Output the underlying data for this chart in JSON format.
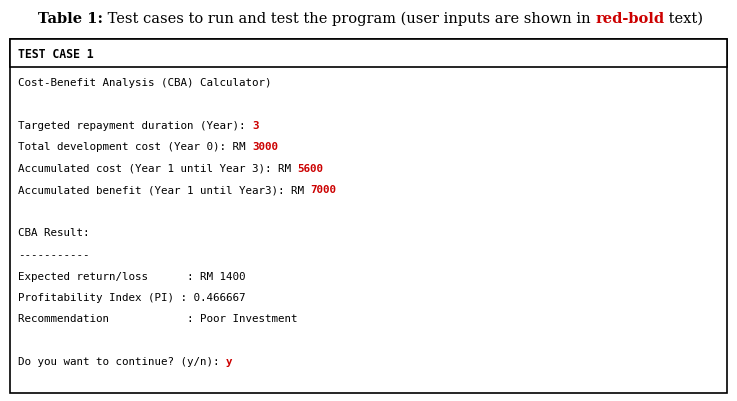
{
  "bg_color": "#ffffff",
  "box_border": "#000000",
  "header_text": "TEST CASE 1",
  "mono_font_size": 7.8,
  "title_font_size": 10.5,
  "title_parts": [
    {
      "text": "Table 1:",
      "color": "#000000",
      "bold": true,
      "family": "serif"
    },
    {
      "text": " Test cases to run and test the program (user inputs are shown in ",
      "color": "#000000",
      "bold": false,
      "family": "serif"
    },
    {
      "text": "red-bold",
      "color": "#cc0000",
      "bold": true,
      "family": "serif"
    },
    {
      "text": " text)",
      "color": "#000000",
      "bold": false,
      "family": "serif"
    }
  ],
  "lines": [
    {
      "parts": [
        {
          "text": "Cost-Benefit Analysis (CBA) Calculator)",
          "color": "#000000",
          "bold": false
        }
      ]
    },
    {
      "parts": []
    },
    {
      "parts": [
        {
          "text": "Targeted repayment duration (Year): ",
          "color": "#000000",
          "bold": false
        },
        {
          "text": "3",
          "color": "#cc0000",
          "bold": true
        }
      ]
    },
    {
      "parts": [
        {
          "text": "Total development cost (Year 0): RM ",
          "color": "#000000",
          "bold": false
        },
        {
          "text": "3000",
          "color": "#cc0000",
          "bold": true
        }
      ]
    },
    {
      "parts": [
        {
          "text": "Accumulated cost (Year 1 until Year 3): RM ",
          "color": "#000000",
          "bold": false
        },
        {
          "text": "5600",
          "color": "#cc0000",
          "bold": true
        }
      ]
    },
    {
      "parts": [
        {
          "text": "Accumulated benefit (Year 1 until Year3): RM ",
          "color": "#000000",
          "bold": false
        },
        {
          "text": "7000",
          "color": "#cc0000",
          "bold": true
        }
      ]
    },
    {
      "parts": []
    },
    {
      "parts": [
        {
          "text": "CBA Result:",
          "color": "#000000",
          "bold": false
        }
      ]
    },
    {
      "parts": [
        {
          "text": "-----------",
          "color": "#000000",
          "bold": false
        }
      ]
    },
    {
      "parts": [
        {
          "text": "Expected return/loss      : RM 1400",
          "color": "#000000",
          "bold": false
        }
      ]
    },
    {
      "parts": [
        {
          "text": "Profitability Index (PI) : 0.466667",
          "color": "#000000",
          "bold": false
        }
      ]
    },
    {
      "parts": [
        {
          "text": "Recommendation            : Poor Investment",
          "color": "#000000",
          "bold": false
        }
      ]
    },
    {
      "parts": []
    },
    {
      "parts": [
        {
          "text": "Do you want to continue? (y/n): ",
          "color": "#000000",
          "bold": false
        },
        {
          "text": "y",
          "color": "#cc0000",
          "bold": true
        }
      ]
    }
  ]
}
